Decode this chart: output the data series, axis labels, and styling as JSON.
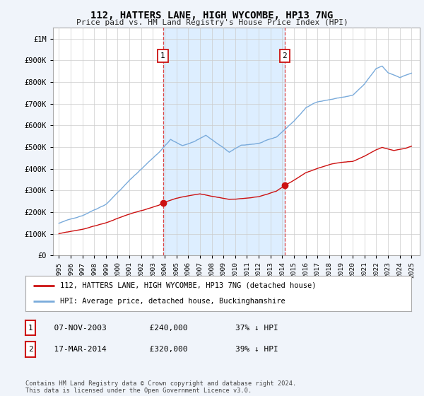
{
  "title": "112, HATTERS LANE, HIGH WYCOMBE, HP13 7NG",
  "subtitle": "Price paid vs. HM Land Registry's House Price Index (HPI)",
  "ylim": [
    0,
    1050000
  ],
  "yticks": [
    0,
    100000,
    200000,
    300000,
    400000,
    500000,
    600000,
    700000,
    800000,
    900000,
    1000000
  ],
  "ytick_labels": [
    "£0",
    "£100K",
    "£200K",
    "£300K",
    "£400K",
    "£500K",
    "£600K",
    "£700K",
    "£800K",
    "£900K",
    "£1M"
  ],
  "hpi_color": "#7aabdb",
  "price_color": "#cc1111",
  "vline_color": "#dd4444",
  "shade_color": "#ddeeff",
  "transaction1_date": 2003.85,
  "transaction1_price": 240000,
  "transaction2_date": 2014.21,
  "transaction2_price": 320000,
  "legend_label_price": "112, HATTERS LANE, HIGH WYCOMBE, HP13 7NG (detached house)",
  "legend_label_hpi": "HPI: Average price, detached house, Buckinghamshire",
  "table_entries": [
    {
      "num": "1",
      "date": "07-NOV-2003",
      "price": "£240,000",
      "pct": "37% ↓ HPI"
    },
    {
      "num": "2",
      "date": "17-MAR-2014",
      "price": "£320,000",
      "pct": "39% ↓ HPI"
    }
  ],
  "footer": "Contains HM Land Registry data © Crown copyright and database right 2024.\nThis data is licensed under the Open Government Licence v3.0.",
  "background_color": "#f0f4fa",
  "plot_bg_color": "#ffffff",
  "grid_color": "#cccccc",
  "xlim_left": 1994.5,
  "xlim_right": 2025.7
}
